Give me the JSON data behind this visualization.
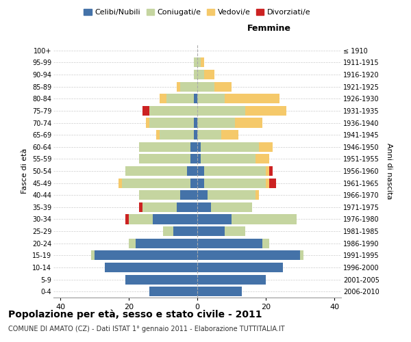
{
  "age_groups": [
    "0-4",
    "5-9",
    "10-14",
    "15-19",
    "20-24",
    "25-29",
    "30-34",
    "35-39",
    "40-44",
    "45-49",
    "50-54",
    "55-59",
    "60-64",
    "65-69",
    "70-74",
    "75-79",
    "80-84",
    "85-89",
    "90-94",
    "95-99",
    "100+"
  ],
  "birth_years": [
    "2006-2010",
    "2001-2005",
    "1996-2000",
    "1991-1995",
    "1986-1990",
    "1981-1985",
    "1976-1980",
    "1971-1975",
    "1966-1970",
    "1961-1965",
    "1956-1960",
    "1951-1955",
    "1946-1950",
    "1941-1945",
    "1936-1940",
    "1931-1935",
    "1926-1930",
    "1921-1925",
    "1916-1920",
    "1911-1915",
    "≤ 1910"
  ],
  "male": {
    "celibi": [
      14,
      21,
      27,
      30,
      18,
      7,
      13,
      6,
      5,
      2,
      3,
      2,
      2,
      1,
      1,
      0,
      1,
      0,
      0,
      0,
      0
    ],
    "coniugati": [
      0,
      0,
      0,
      1,
      2,
      3,
      7,
      10,
      12,
      20,
      18,
      15,
      15,
      10,
      13,
      14,
      8,
      5,
      1,
      1,
      0
    ],
    "vedovi": [
      0,
      0,
      0,
      0,
      0,
      0,
      0,
      0,
      0,
      1,
      0,
      0,
      0,
      1,
      1,
      0,
      2,
      1,
      0,
      0,
      0
    ],
    "divorziati": [
      0,
      0,
      0,
      0,
      0,
      0,
      1,
      1,
      0,
      0,
      0,
      0,
      0,
      0,
      0,
      2,
      0,
      0,
      0,
      0,
      0
    ]
  },
  "female": {
    "nubili": [
      13,
      20,
      25,
      30,
      19,
      8,
      10,
      4,
      3,
      2,
      2,
      1,
      1,
      0,
      0,
      0,
      0,
      0,
      0,
      0,
      0
    ],
    "coniugate": [
      0,
      0,
      0,
      1,
      2,
      6,
      19,
      12,
      14,
      18,
      18,
      16,
      17,
      7,
      11,
      14,
      8,
      5,
      2,
      1,
      0
    ],
    "vedove": [
      0,
      0,
      0,
      0,
      0,
      0,
      0,
      0,
      1,
      1,
      1,
      4,
      4,
      5,
      8,
      12,
      16,
      5,
      3,
      1,
      0
    ],
    "divorziate": [
      0,
      0,
      0,
      0,
      0,
      0,
      0,
      0,
      0,
      2,
      1,
      0,
      0,
      0,
      0,
      0,
      0,
      0,
      0,
      0,
      0
    ]
  },
  "colors": {
    "celibi": "#4472a8",
    "coniugati": "#c5d5a0",
    "vedovi": "#f5c96a",
    "divorziati": "#cc2222"
  },
  "xlim": 42,
  "title": "Popolazione per età, sesso e stato civile - 2011",
  "subtitle": "COMUNE DI AMATO (CZ) - Dati ISTAT 1° gennaio 2011 - Elaborazione TUTTITALIA.IT",
  "ylabel_left": "Fasce di età",
  "ylabel_right": "Anni di nascita",
  "xlabel_right": "Femmine",
  "bg_color": "#ffffff",
  "grid_color": "#cccccc"
}
